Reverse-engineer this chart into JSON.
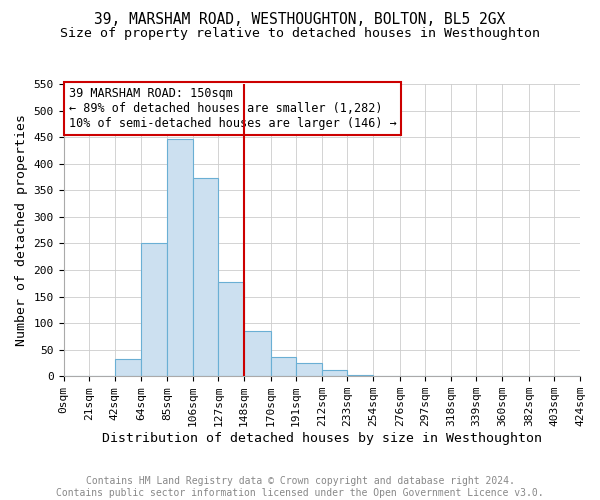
{
  "title": "39, MARSHAM ROAD, WESTHOUGHTON, BOLTON, BL5 2GX",
  "subtitle": "Size of property relative to detached houses in Westhoughton",
  "xlabel": "Distribution of detached houses by size in Westhoughton",
  "ylabel": "Number of detached properties",
  "bar_color": "#cce0f0",
  "bar_edge_color": "#6aafd4",
  "grid_color": "#cccccc",
  "vline_x": 148,
  "vline_color": "#cc0000",
  "annotation_text": "39 MARSHAM ROAD: 150sqm\n← 89% of detached houses are smaller (1,282)\n10% of semi-detached houses are larger (146) →",
  "annotation_box_color": "#ffffff",
  "annotation_box_edge_color": "#cc0000",
  "bin_edges": [
    0,
    21,
    42,
    64,
    85,
    106,
    127,
    148,
    170,
    191,
    212,
    233,
    254,
    276,
    297,
    318,
    339,
    360,
    382,
    403,
    424
  ],
  "bin_labels": [
    "0sqm",
    "21sqm",
    "42sqm",
    "64sqm",
    "85sqm",
    "106sqm",
    "127sqm",
    "148sqm",
    "170sqm",
    "191sqm",
    "212sqm",
    "233sqm",
    "254sqm",
    "276sqm",
    "297sqm",
    "318sqm",
    "339sqm",
    "360sqm",
    "382sqm",
    "403sqm",
    "424sqm"
  ],
  "bar_heights": [
    0,
    0,
    32,
    250,
    447,
    373,
    178,
    86,
    36,
    25,
    12,
    2,
    1,
    1,
    1,
    0,
    0,
    0,
    0,
    0
  ],
  "ylim": [
    0,
    550
  ],
  "yticks": [
    0,
    50,
    100,
    150,
    200,
    250,
    300,
    350,
    400,
    450,
    500,
    550
  ],
  "footer_text": "Contains HM Land Registry data © Crown copyright and database right 2024.\nContains public sector information licensed under the Open Government Licence v3.0.",
  "background_color": "#ffffff",
  "title_fontsize": 10.5,
  "subtitle_fontsize": 9.5,
  "axis_label_fontsize": 9.5,
  "tick_fontsize": 8,
  "footer_fontsize": 7,
  "annotation_fontsize": 8.5
}
